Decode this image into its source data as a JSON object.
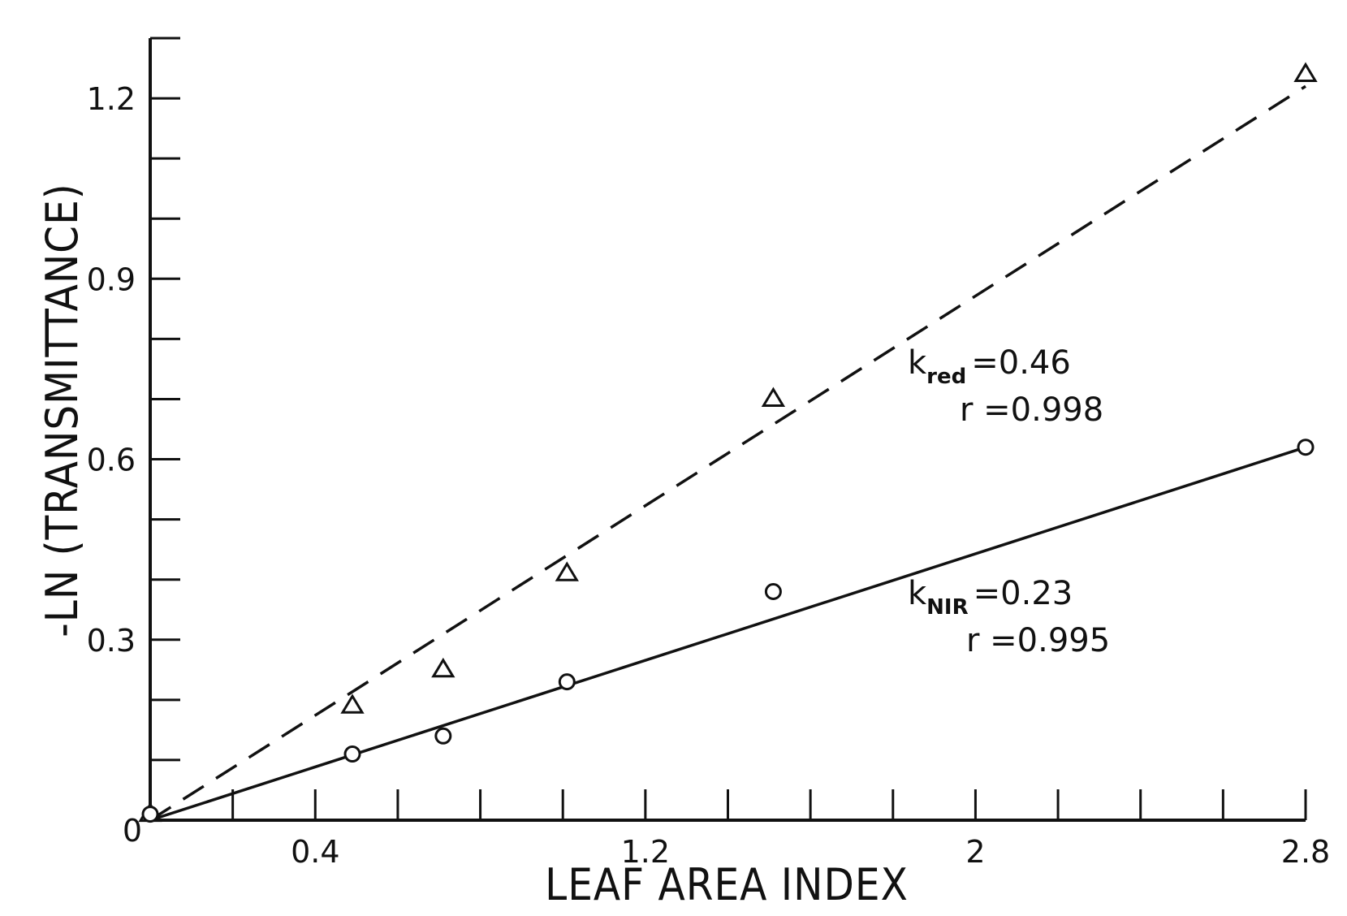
{
  "chart_data": {
    "type": "scatter",
    "xlabel": "LEAF AREA INDEX",
    "ylabel": "-LN (TRANSMITTANCE)",
    "xlim": [
      0,
      2.8
    ],
    "ylim": [
      0,
      1.3
    ],
    "x_ticks": [
      0.2,
      0.4,
      0.6,
      0.8,
      1.0,
      1.2,
      1.4,
      1.6,
      1.8,
      2.0,
      2.2,
      2.4,
      2.6,
      2.8
    ],
    "x_tick_labels": [
      {
        "value": 0.4,
        "label": "0.4"
      },
      {
        "value": 1.2,
        "label": "1.2"
      },
      {
        "value": 2.0,
        "label": "2"
      },
      {
        "value": 2.8,
        "label": "2.8"
      }
    ],
    "y_ticks": [
      0.1,
      0.2,
      0.3,
      0.4,
      0.5,
      0.6,
      0.7,
      0.8,
      0.9,
      1.0,
      1.1,
      1.2,
      1.3
    ],
    "y_tick_labels": [
      {
        "value": 0.3,
        "label": "0.3"
      },
      {
        "value": 0.6,
        "label": "0.6"
      },
      {
        "value": 0.9,
        "label": "0.9"
      },
      {
        "value": 1.2,
        "label": "1.2"
      }
    ],
    "origin_label": "0",
    "series": [
      {
        "marker": "triangle",
        "line": "dashed",
        "x": [
          0.0,
          0.49,
          0.71,
          1.01,
          1.51,
          2.8
        ],
        "y": [
          0.01,
          0.19,
          0.25,
          0.41,
          0.7,
          1.24
        ],
        "fit": {
          "x": [
            0.0,
            2.8
          ],
          "y": [
            0.0,
            1.22
          ]
        }
      },
      {
        "marker": "circle",
        "line": "solid",
        "x": [
          0.0,
          0.49,
          0.71,
          1.01,
          1.51,
          2.8
        ],
        "y": [
          0.01,
          0.11,
          0.14,
          0.23,
          0.38,
          0.62
        ],
        "fit": {
          "x": [
            0.0,
            2.8
          ],
          "y": [
            0.0,
            0.62
          ]
        }
      }
    ],
    "annotations": [
      {
        "k": "k",
        "sub": "red",
        "value": "=0.46",
        "r": "r =0.998"
      },
      {
        "k": "k",
        "sub": "NIR",
        "value": "=0.23",
        "r": "r =0.995"
      }
    ],
    "grid": false,
    "legend": "none"
  }
}
